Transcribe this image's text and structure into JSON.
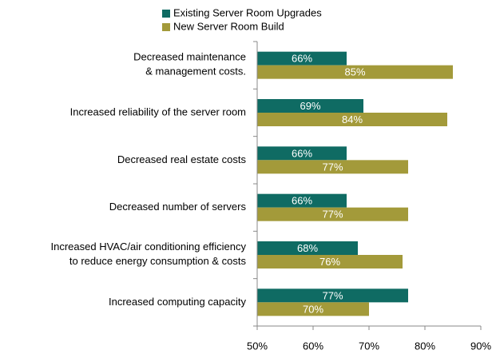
{
  "chart_data": {
    "type": "bar",
    "orientation": "horizontal",
    "categories": [
      "Decreased maintenance\n& management costs.",
      "Increased reliability of the server room",
      "Decreased real estate costs",
      "Decreased number of servers",
      "Increased HVAC/air conditioning efficiency\nto reduce energy consumption & costs",
      "Increased computing capacity"
    ],
    "series": [
      {
        "name": "Existing Server Room Upgrades",
        "color": "#0f6b63",
        "values": [
          66,
          69,
          66,
          66,
          68,
          77
        ],
        "value_labels": [
          "66%",
          "69%",
          "66%",
          "66%",
          "68%",
          "77%"
        ]
      },
      {
        "name": "New Server Room Build",
        "color": "#a39a3a",
        "values": [
          85,
          84,
          77,
          77,
          76,
          70
        ],
        "value_labels": [
          "85%",
          "84%",
          "77%",
          "77%",
          "76%",
          "70%"
        ]
      }
    ],
    "xlim": [
      50,
      90
    ],
    "xticks": [
      {
        "value": 50,
        "label": "50%"
      },
      {
        "value": 60,
        "label": "60%"
      },
      {
        "value": 70,
        "label": "70%"
      },
      {
        "value": 80,
        "label": "80%"
      },
      {
        "value": 90,
        "label": "90%"
      }
    ],
    "legend": "top"
  }
}
